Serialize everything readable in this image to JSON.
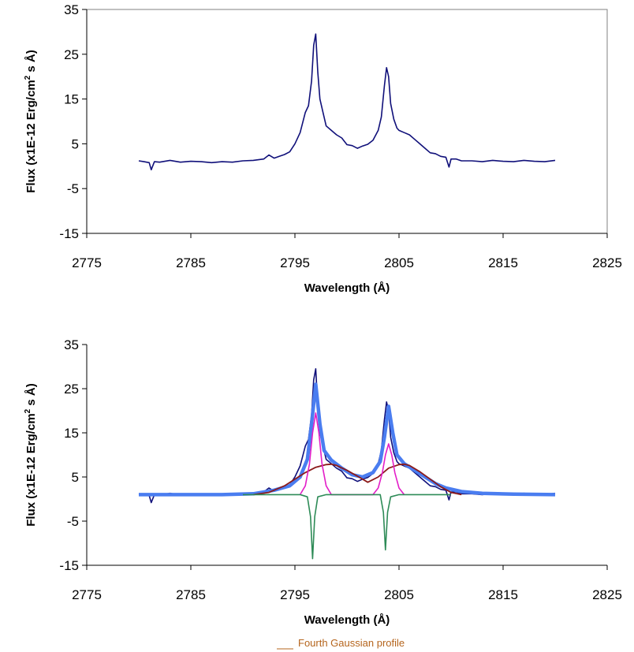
{
  "chart_data": [
    {
      "type": "line",
      "title": "",
      "xlabel": "Wavelength (Å)",
      "ylabel_prefix": "Flux (x1E-12 Erg/cm",
      "ylabel_sup": "2",
      "ylabel_suffix": " s Å)",
      "xlim": [
        2775,
        2825
      ],
      "ylim": [
        -15,
        35
      ],
      "xticks": [
        "2775",
        "2785",
        "2795",
        "2805",
        "2815",
        "2825"
      ],
      "yticks": [
        "35",
        "25",
        "15",
        "5",
        "-5",
        "-15"
      ],
      "grid": false,
      "series": [
        {
          "color": "#10107a",
          "x": [
            2780.0,
            2780.5,
            2781.0,
            2781.2,
            2781.5,
            2782.0,
            2783.0,
            2784.0,
            2785.0,
            2786.0,
            2787.0,
            2788.0,
            2789.0,
            2790.0,
            2791.0,
            2792.0,
            2792.5,
            2793.0,
            2793.5,
            2794.0,
            2794.5,
            2795.0,
            2795.5,
            2796.0,
            2796.3,
            2796.6,
            2796.8,
            2797.0,
            2797.2,
            2797.4,
            2797.7,
            2798.0,
            2798.5,
            2799.0,
            2799.5,
            2800.0,
            2800.5,
            2801.0,
            2801.5,
            2802.0,
            2802.5,
            2803.0,
            2803.3,
            2803.6,
            2803.8,
            2804.0,
            2804.2,
            2804.5,
            2804.8,
            2805.0,
            2805.5,
            2806.0,
            2806.5,
            2807.0,
            2807.5,
            2808.0,
            2808.5,
            2809.0,
            2809.5,
            2809.8,
            2810.0,
            2810.5,
            2811.0,
            2812.0,
            2813.0,
            2814.0,
            2815.0,
            2816.0,
            2817.0,
            2818.0,
            2819.0,
            2820.0
          ],
          "y": [
            1.2,
            1.0,
            0.8,
            -0.8,
            1.0,
            0.9,
            1.3,
            0.9,
            1.1,
            1.0,
            0.8,
            1.0,
            0.9,
            1.2,
            1.3,
            1.6,
            2.5,
            1.8,
            2.2,
            2.6,
            3.2,
            5.0,
            7.5,
            12.0,
            13.5,
            19.0,
            27.0,
            29.5,
            21.0,
            15.0,
            12.0,
            9.0,
            8.0,
            7.0,
            6.3,
            4.8,
            4.6,
            4.0,
            4.5,
            4.9,
            5.8,
            8.0,
            11.0,
            18.0,
            22.0,
            20.0,
            14.0,
            10.5,
            8.5,
            8.0,
            7.5,
            7.0,
            6.0,
            5.0,
            4.0,
            3.0,
            2.8,
            2.2,
            2.0,
            -0.2,
            1.6,
            1.6,
            1.2,
            1.2,
            1.0,
            1.3,
            1.1,
            1.0,
            1.3,
            1.1,
            1.0,
            1.3
          ]
        }
      ]
    },
    {
      "type": "line",
      "title": "",
      "xlabel": "Wavelength (Å)",
      "ylabel_prefix": "Flux (x1E-12 Erg/cm",
      "ylabel_sup": "2",
      "ylabel_suffix": " s Å)",
      "xlim": [
        2775,
        2825
      ],
      "ylim": [
        -15,
        35
      ],
      "xticks": [
        "2775",
        "2785",
        "2795",
        "2805",
        "2815",
        "2825"
      ],
      "yticks": [
        "35",
        "25",
        "15",
        "5",
        "-5",
        "-15"
      ],
      "grid": false,
      "legend": {
        "entry": "Fourth Gaussian profile",
        "color": "#b5651d",
        "placement": "bottom-center"
      },
      "series": [
        {
          "color": "#10107a",
          "x": [
            2780.0,
            2780.5,
            2781.0,
            2781.2,
            2781.5,
            2782.0,
            2783.0,
            2784.0,
            2785.0,
            2786.0,
            2787.0,
            2788.0,
            2789.0,
            2790.0,
            2791.0,
            2792.0,
            2792.5,
            2793.0,
            2793.5,
            2794.0,
            2794.5,
            2795.0,
            2795.5,
            2796.0,
            2796.3,
            2796.6,
            2796.8,
            2797.0,
            2797.2,
            2797.4,
            2797.7,
            2798.0,
            2798.5,
            2799.0,
            2799.5,
            2800.0,
            2800.5,
            2801.0,
            2801.5,
            2802.0,
            2802.5,
            2803.0,
            2803.3,
            2803.6,
            2803.8,
            2804.0,
            2804.2,
            2804.5,
            2804.8,
            2805.0,
            2805.5,
            2806.0,
            2806.5,
            2807.0,
            2807.5,
            2808.0,
            2808.5,
            2809.0,
            2809.5,
            2809.8,
            2810.0,
            2810.5,
            2811.0,
            2812.0,
            2813.0,
            2814.0,
            2815.0,
            2816.0,
            2817.0,
            2818.0,
            2819.0,
            2820.0
          ],
          "y": [
            1.2,
            1.0,
            0.8,
            -0.8,
            1.0,
            0.9,
            1.3,
            0.9,
            1.1,
            1.0,
            0.8,
            1.0,
            0.9,
            1.2,
            1.3,
            1.6,
            2.5,
            1.8,
            2.2,
            2.6,
            3.2,
            5.0,
            7.5,
            12.0,
            13.5,
            19.0,
            27.0,
            29.5,
            21.0,
            15.0,
            12.0,
            9.0,
            8.0,
            7.0,
            6.3,
            4.8,
            4.6,
            4.0,
            4.5,
            4.9,
            5.8,
            8.0,
            11.0,
            18.0,
            22.0,
            20.0,
            14.0,
            10.5,
            8.5,
            8.0,
            7.5,
            7.0,
            6.0,
            5.0,
            4.0,
            3.0,
            2.8,
            2.2,
            2.0,
            -0.2,
            1.6,
            1.6,
            1.2,
            1.2,
            1.0,
            1.3,
            1.1,
            1.0,
            1.3,
            1.1,
            1.0,
            1.3
          ]
        },
        {
          "color": "#4a7df0",
          "x": [
            2780.0,
            2788.0,
            2791.0,
            2793.0,
            2794.5,
            2795.5,
            2796.2,
            2796.6,
            2797.0,
            2797.4,
            2797.8,
            2798.5,
            2799.5,
            2800.5,
            2801.5,
            2802.5,
            2803.2,
            2803.6,
            2804.0,
            2804.4,
            2804.8,
            2805.5,
            2806.5,
            2807.5,
            2808.5,
            2809.5,
            2811.0,
            2813.0,
            2816.0,
            2820.0
          ],
          "y": [
            1.0,
            1.0,
            1.2,
            2.0,
            3.0,
            5.0,
            9.0,
            17.0,
            26.0,
            17.0,
            11.0,
            8.8,
            7.0,
            5.5,
            5.0,
            6.0,
            8.5,
            14.0,
            21.0,
            15.0,
            10.0,
            8.0,
            6.5,
            5.0,
            3.5,
            2.5,
            1.7,
            1.3,
            1.1,
            1.0
          ]
        },
        {
          "color": "#8b1a1a",
          "x": [
            2791.0,
            2792.5,
            2794.0,
            2795.0,
            2796.0,
            2797.0,
            2798.0,
            2798.5,
            2799.0,
            2800.0,
            2801.0,
            2802.0,
            2803.0,
            2804.0,
            2805.0,
            2805.5,
            2806.0,
            2807.0,
            2808.0,
            2809.0,
            2810.0,
            2811.0
          ],
          "y": [
            1.0,
            1.5,
            3.0,
            4.5,
            6.0,
            7.2,
            7.8,
            7.9,
            7.6,
            6.5,
            5.2,
            3.8,
            5.0,
            7.0,
            7.8,
            7.9,
            7.6,
            6.2,
            4.5,
            2.8,
            1.5,
            1.0
          ]
        },
        {
          "color": "#e31ec8",
          "x": [
            2795.5,
            2796.0,
            2796.4,
            2796.7,
            2797.0,
            2797.3,
            2797.6,
            2798.0,
            2798.5,
            2802.5,
            2803.0,
            2803.4,
            2803.7,
            2804.0,
            2804.3,
            2804.6,
            2805.0,
            2805.5
          ],
          "y": [
            1.0,
            3.0,
            8.0,
            15.0,
            19.5,
            15.0,
            8.0,
            3.0,
            1.0,
            1.0,
            2.5,
            6.0,
            10.0,
            12.5,
            10.0,
            6.0,
            2.5,
            1.0
          ]
        },
        {
          "color": "#2e8b57",
          "x": [
            2790.0,
            2795.5,
            2796.2,
            2796.5,
            2796.7,
            2796.9,
            2797.2,
            2798.0,
            2803.2,
            2803.5,
            2803.7,
            2803.9,
            2804.2,
            2805.0,
            2810.0
          ],
          "y": [
            1.0,
            1.0,
            0.5,
            -4.0,
            -13.5,
            -4.0,
            0.5,
            1.0,
            1.0,
            -3.0,
            -11.5,
            -3.0,
            0.5,
            1.0,
            1.0
          ]
        }
      ]
    }
  ]
}
